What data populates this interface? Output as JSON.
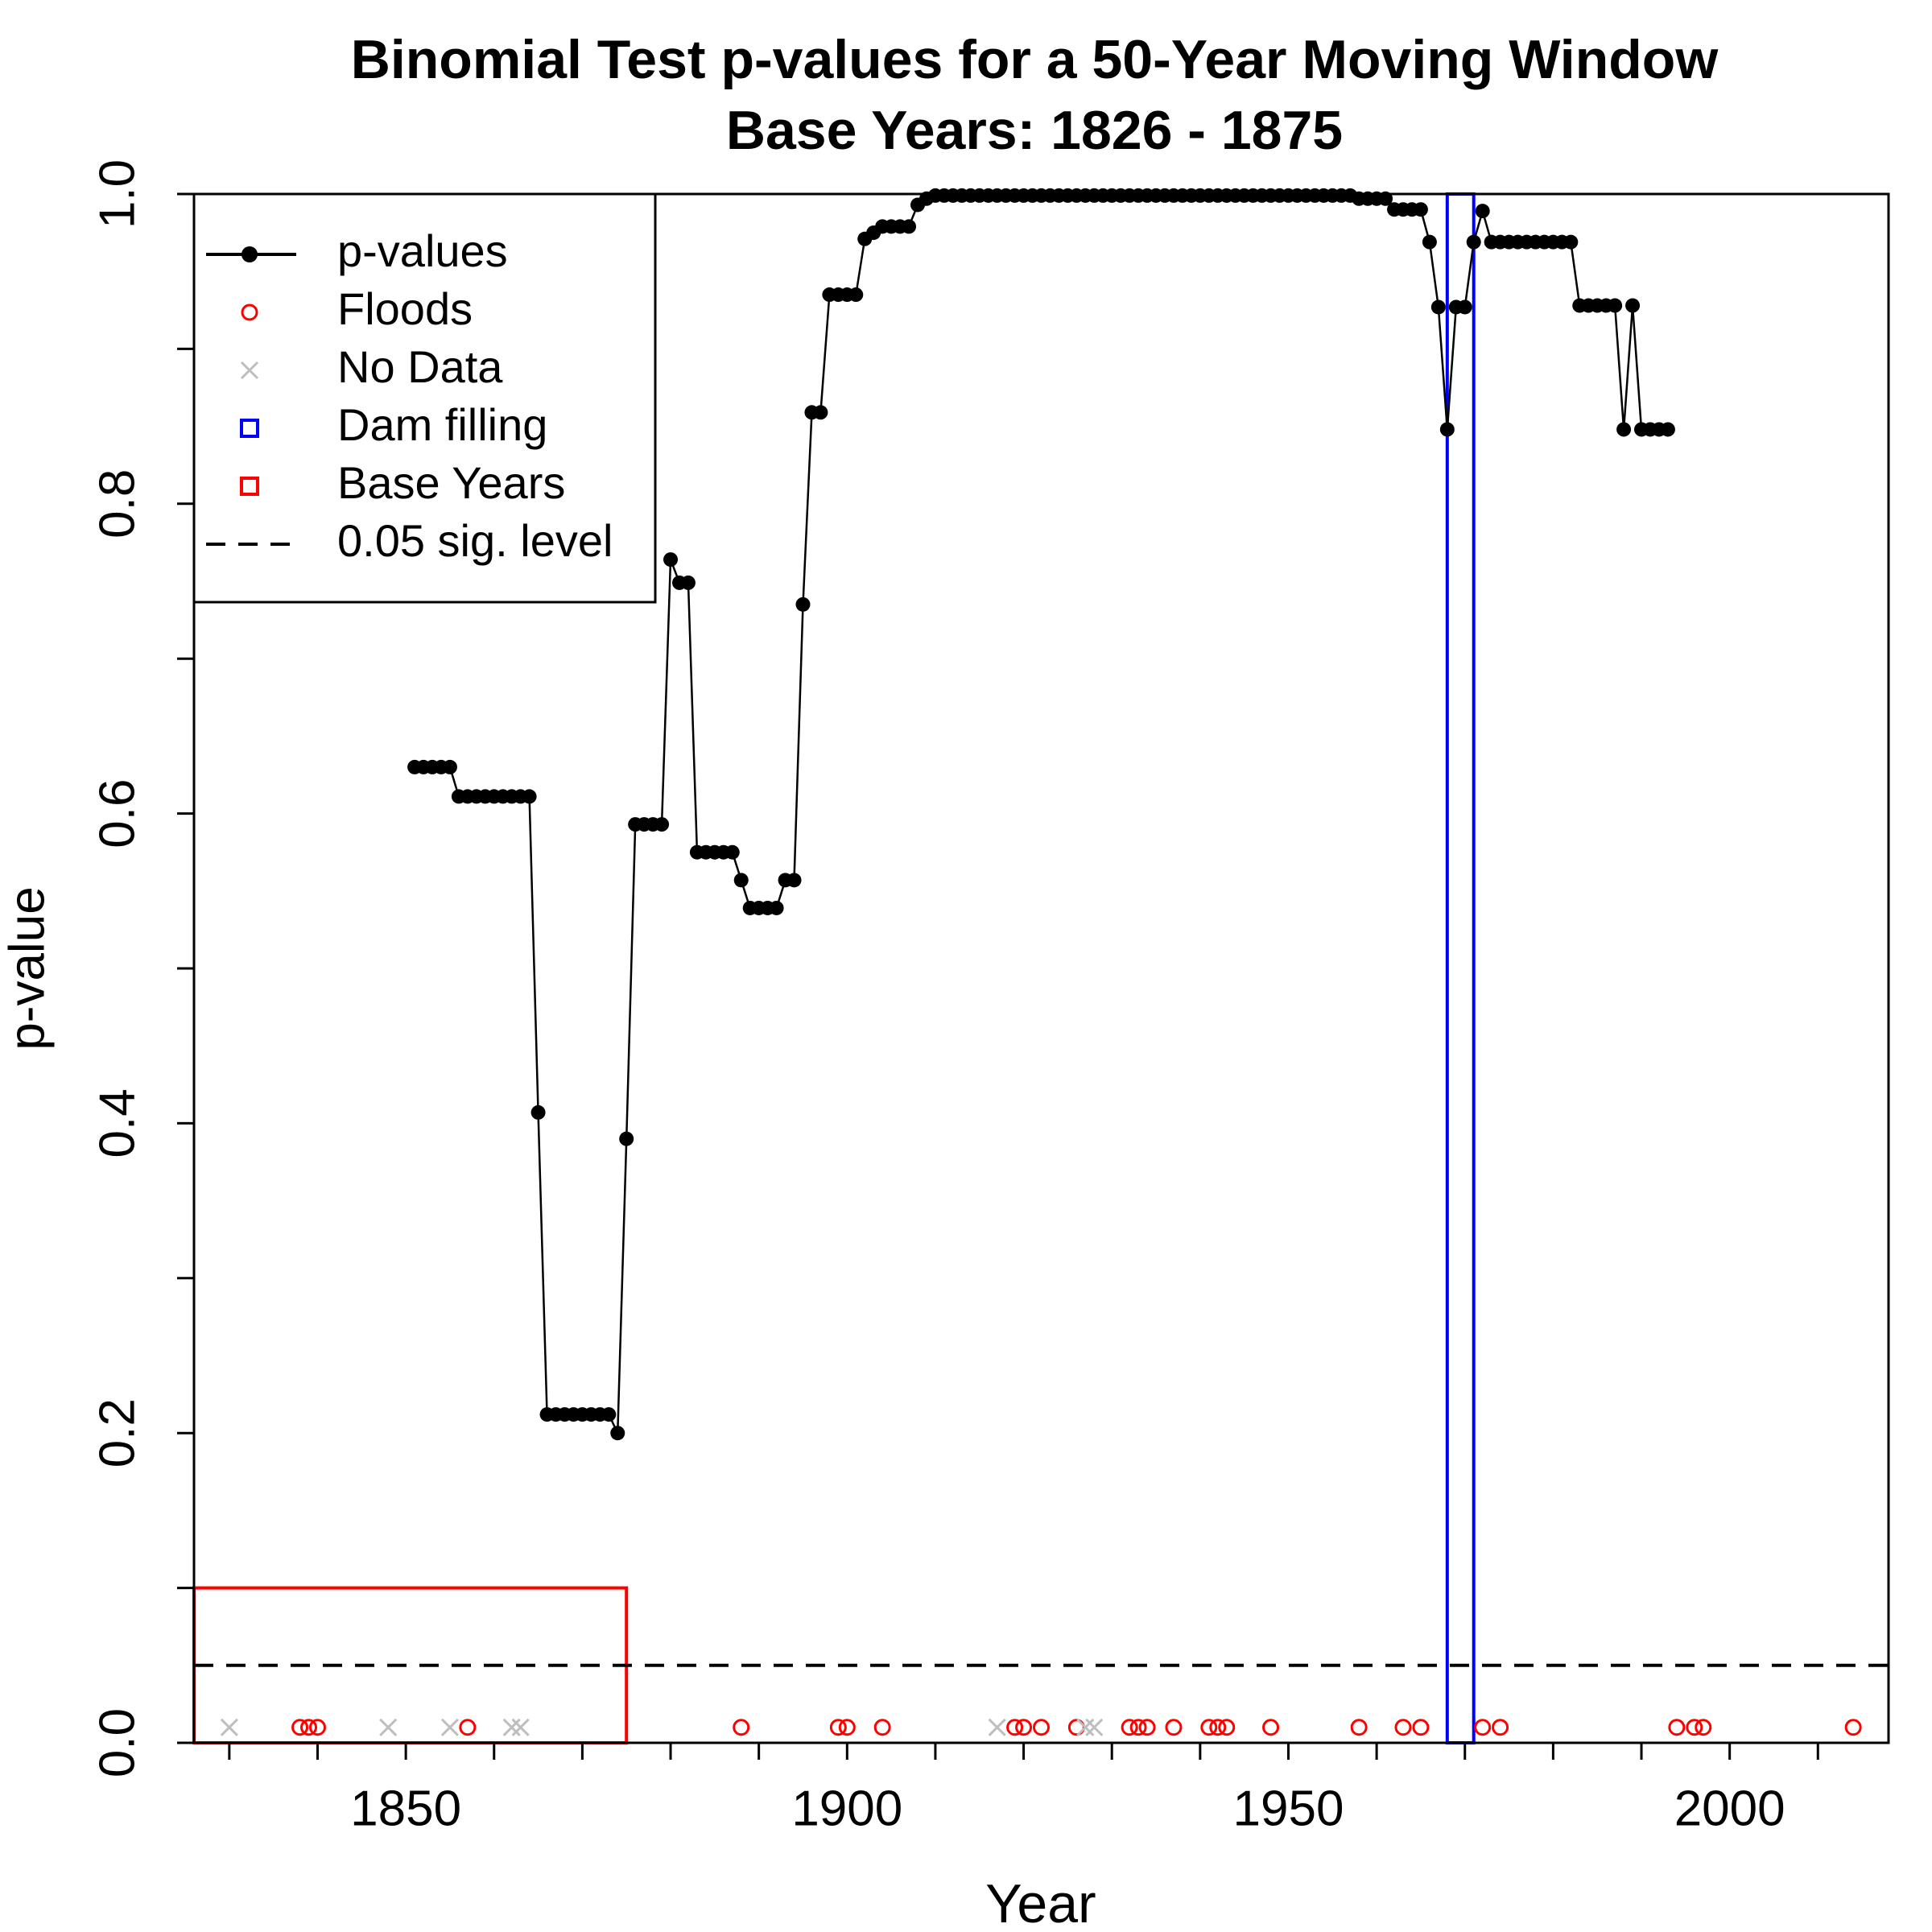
{
  "chart_data": {
    "type": "line",
    "title": "Binomial Test p-values for a 50-Year Moving Window",
    "subtitle": "Base Years: 1826 - 1875",
    "x_label": "Year",
    "y_label": "p-value",
    "xlim": [
      1826,
      2018
    ],
    "ylim": [
      0,
      1
    ],
    "xticks": [
      1850,
      1900,
      1950,
      2000
    ],
    "xminor_ticks": [
      1830,
      1840,
      1860,
      1870,
      1880,
      1890,
      1910,
      1920,
      1930,
      1940,
      1960,
      1970,
      1980,
      1990,
      2010
    ],
    "yticks": [
      {
        "value": 0,
        "label": "0.0"
      },
      {
        "value": 0.2,
        "label": "0.2"
      },
      {
        "value": 0.4,
        "label": "0.4"
      },
      {
        "value": 0.6,
        "label": "0.6"
      },
      {
        "value": 0.8,
        "label": "0.8"
      },
      {
        "value": 1,
        "label": "1.0"
      }
    ],
    "yminor_ticks": [
      0.1,
      0.3,
      0.5,
      0.7,
      0.9
    ],
    "legend": "topleft",
    "series": [
      {
        "name": "p-values",
        "color": "#000000",
        "marker": "dot-line",
        "x": [
          1851,
          1852,
          1853,
          1854,
          1855,
          1856,
          1857,
          1858,
          1859,
          1860,
          1861,
          1862,
          1863,
          1864,
          1865,
          1866,
          1867,
          1868,
          1869,
          1870,
          1871,
          1872,
          1873,
          1874,
          1875,
          1876,
          1877,
          1878,
          1879,
          1880,
          1881,
          1882,
          1883,
          1884,
          1885,
          1886,
          1887,
          1888,
          1889,
          1890,
          1891,
          1892,
          1893,
          1894,
          1895,
          1896,
          1897,
          1898,
          1899,
          1900,
          1901,
          1902,
          1903,
          1904,
          1905,
          1906,
          1907,
          1908,
          1909,
          1910,
          1911,
          1912,
          1913,
          1914,
          1915,
          1916,
          1917,
          1918,
          1919,
          1920,
          1921,
          1922,
          1923,
          1924,
          1925,
          1926,
          1927,
          1928,
          1929,
          1930,
          1931,
          1932,
          1933,
          1934,
          1935,
          1936,
          1937,
          1938,
          1939,
          1940,
          1941,
          1942,
          1943,
          1944,
          1945,
          1946,
          1947,
          1948,
          1949,
          1950,
          1951,
          1952,
          1953,
          1954,
          1955,
          1956,
          1957,
          1958,
          1959,
          1960,
          1961,
          1962,
          1963,
          1964,
          1965,
          1966,
          1967,
          1968,
          1969,
          1970,
          1971,
          1972,
          1973,
          1974,
          1975,
          1976,
          1977,
          1978,
          1979,
          1980,
          1981,
          1982,
          1983,
          1984,
          1985,
          1986,
          1987,
          1988,
          1989,
          1990,
          1991,
          1992,
          1993
        ],
        "values": [
          0.63,
          0.63,
          0.63,
          0.63,
          0.63,
          0.611,
          0.611,
          0.611,
          0.611,
          0.611,
          0.611,
          0.611,
          0.611,
          0.611,
          0.407,
          0.212,
          0.212,
          0.212,
          0.212,
          0.212,
          0.212,
          0.212,
          0.212,
          0.2,
          0.39,
          0.593,
          0.593,
          0.593,
          0.593,
          0.764,
          0.749,
          0.749,
          0.575,
          0.575,
          0.575,
          0.575,
          0.575,
          0.557,
          0.539,
          0.539,
          0.539,
          0.539,
          0.557,
          0.557,
          0.735,
          0.859,
          0.859,
          0.935,
          0.935,
          0.935,
          0.935,
          0.971,
          0.975,
          0.979,
          0.979,
          0.979,
          0.979,
          0.993,
          0.997,
          0.999,
          0.999,
          0.999,
          0.999,
          0.999,
          0.999,
          0.999,
          0.999,
          0.999,
          0.999,
          0.999,
          0.999,
          0.999,
          0.999,
          0.999,
          0.999,
          0.999,
          0.999,
          0.999,
          0.999,
          0.999,
          0.999,
          0.999,
          0.999,
          0.999,
          0.999,
          0.999,
          0.999,
          0.999,
          0.999,
          0.999,
          0.999,
          0.999,
          0.999,
          0.999,
          0.999,
          0.999,
          0.999,
          0.999,
          0.999,
          0.999,
          0.999,
          0.999,
          0.999,
          0.999,
          0.999,
          0.999,
          0.999,
          0.997,
          0.997,
          0.997,
          0.997,
          0.99,
          0.99,
          0.99,
          0.99,
          0.969,
          0.927,
          0.848,
          0.927,
          0.927,
          0.969,
          0.989,
          0.969,
          0.969,
          0.969,
          0.969,
          0.969,
          0.969,
          0.969,
          0.969,
          0.969,
          0.969,
          0.928,
          0.928,
          0.928,
          0.928,
          0.928,
          0.848,
          0.928,
          0.848,
          0.848,
          0.848,
          0.848
        ]
      },
      {
        "name": "Floods",
        "color": "#ff0000",
        "marker": "circle",
        "x": [
          1838,
          1839,
          1840,
          1857,
          1888,
          1899,
          1900,
          1904,
          1919,
          1920,
          1922,
          1926,
          1932,
          1933,
          1934,
          1937,
          1941,
          1942,
          1943,
          1948,
          1958,
          1963,
          1965,
          1972,
          1974,
          1994,
          1996,
          1997,
          2014
        ],
        "values": [
          0.01,
          0.01,
          0.01,
          0.01,
          0.01,
          0.01,
          0.01,
          0.01,
          0.01,
          0.01,
          0.01,
          0.01,
          0.01,
          0.01,
          0.01,
          0.01,
          0.01,
          0.01,
          0.01,
          0.01,
          0.01,
          0.01,
          0.01,
          0.01,
          0.01,
          0.01,
          0.01,
          0.01,
          0.01
        ]
      },
      {
        "name": "No Data",
        "color": "#bebebe",
        "marker": "cross",
        "x": [
          1830,
          1848,
          1855,
          1862,
          1863,
          1917,
          1927,
          1928
        ],
        "values": [
          0.01,
          0.01,
          0.01,
          0.01,
          0.01,
          0.01,
          0.01,
          0.01
        ]
      }
    ],
    "regions": [
      {
        "name": "Dam filling",
        "color": "#0000ff",
        "xlim": [
          1968,
          1971
        ],
        "ylim": [
          0,
          1
        ]
      },
      {
        "name": "Base Years",
        "color": "#ff0000",
        "xlim": [
          1826,
          1875
        ],
        "ylim": [
          0,
          0.1
        ]
      }
    ],
    "hline": {
      "name": "0.05 sig. level",
      "value": 0.05,
      "color": "#000000"
    }
  }
}
